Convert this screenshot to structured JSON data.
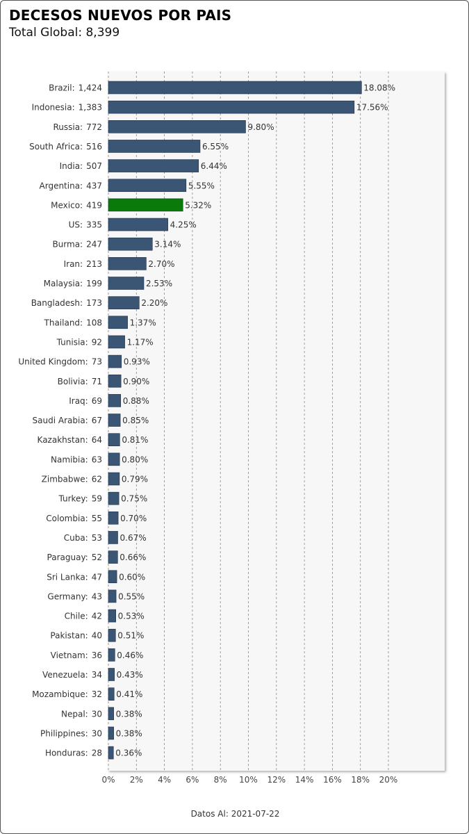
{
  "header": {
    "title": "DECESOS NUEVOS POR PAIS",
    "subtitle_prefix": "Total Global:",
    "total": "8,399"
  },
  "footer": {
    "prefix": "Datos Al:",
    "date": "2021-07-22"
  },
  "colors": {
    "bar": "#3b5575",
    "highlight": "#0a7a0a",
    "plot_background": "#f7f7f7",
    "grid": "#888888"
  },
  "chart_data": {
    "type": "bar",
    "orientation": "horizontal",
    "title": "DECESOS NUEVOS POR PAIS",
    "xlim": [
      0,
      20
    ],
    "x_ticks": [
      "0%",
      "2%",
      "4%",
      "6%",
      "8%",
      "10%",
      "12%",
      "14%",
      "16%",
      "18%",
      "20%"
    ],
    "highlight_category": "Mexico",
    "grid": true,
    "categories": [
      "Brazil",
      "Indonesia",
      "Russia",
      "South Africa",
      "India",
      "Argentina",
      "Mexico",
      "US",
      "Burma",
      "Iran",
      "Malaysia",
      "Bangladesh",
      "Thailand",
      "Tunisia",
      "United Kingdom",
      "Bolivia",
      "Iraq",
      "Saudi Arabia",
      "Kazakhstan",
      "Namibia",
      "Zimbabwe",
      "Turkey",
      "Colombia",
      "Cuba",
      "Paraguay",
      "Sri Lanka",
      "Germany",
      "Chile",
      "Pakistan",
      "Vietnam",
      "Venezuela",
      "Mozambique",
      "Nepal",
      "Philippines",
      "Honduras"
    ],
    "counts": [
      "1,424",
      "1,383",
      "772",
      "516",
      "507",
      "437",
      "419",
      "335",
      "247",
      "213",
      "199",
      "173",
      "108",
      "92",
      "73",
      "71",
      "69",
      "67",
      "64",
      "63",
      "62",
      "59",
      "55",
      "53",
      "52",
      "47",
      "43",
      "42",
      "40",
      "36",
      "34",
      "32",
      "30",
      "30",
      "28"
    ],
    "values": [
      18.08,
      17.56,
      9.8,
      6.55,
      6.44,
      5.55,
      5.32,
      4.25,
      3.14,
      2.7,
      2.53,
      2.2,
      1.37,
      1.17,
      0.93,
      0.9,
      0.88,
      0.85,
      0.81,
      0.8,
      0.79,
      0.75,
      0.7,
      0.67,
      0.66,
      0.6,
      0.55,
      0.53,
      0.51,
      0.46,
      0.43,
      0.41,
      0.38,
      0.38,
      0.36
    ],
    "value_labels": [
      "18.08%",
      "17.56%",
      "9.80%",
      "6.55%",
      "6.44%",
      "5.55%",
      "5.32%",
      "4.25%",
      "3.14%",
      "2.70%",
      "2.53%",
      "2.20%",
      "1.37%",
      "1.17%",
      "0.93%",
      "0.90%",
      "0.88%",
      "0.85%",
      "0.81%",
      "0.80%",
      "0.79%",
      "0.75%",
      "0.70%",
      "0.67%",
      "0.66%",
      "0.60%",
      "0.55%",
      "0.53%",
      "0.51%",
      "0.46%",
      "0.43%",
      "0.41%",
      "0.38%",
      "0.38%",
      "0.36%"
    ]
  }
}
